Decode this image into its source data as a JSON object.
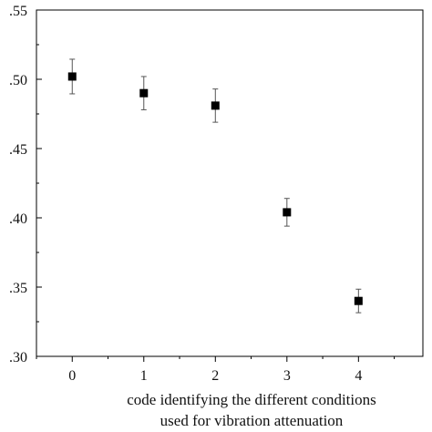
{
  "chart_data": {
    "type": "scatter",
    "title": "",
    "xlabel_lines": [
      "code identifying the different conditions",
      "used for vibration attenuation"
    ],
    "ylabel": "",
    "xlim": [
      -0.5,
      4.9
    ],
    "ylim": [
      0.3,
      0.55
    ],
    "xticks": [
      0,
      1,
      2,
      3,
      4
    ],
    "xtick_labels": [
      "0",
      "1",
      "2",
      "3",
      "4"
    ],
    "yticks": [
      0.3,
      0.35,
      0.4,
      0.45,
      0.5,
      0.55
    ],
    "ytick_labels": [
      ".30",
      ".35",
      ".40",
      ".45",
      ".50",
      ".55"
    ],
    "grid": false,
    "legend": "none",
    "series": [
      {
        "marker": "square",
        "color": "#000000",
        "points": [
          {
            "x": 0,
            "y": 0.502,
            "err": 0.0125
          },
          {
            "x": 1,
            "y": 0.49,
            "err": 0.012
          },
          {
            "x": 2,
            "y": 0.481,
            "err": 0.012
          },
          {
            "x": 3,
            "y": 0.404,
            "err": 0.01
          },
          {
            "x": 4,
            "y": 0.34,
            "err": 0.0085
          }
        ]
      }
    ]
  }
}
